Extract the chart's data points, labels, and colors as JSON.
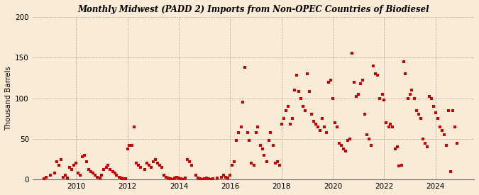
{
  "title": "Monthly Midwest (PADD 2) Imports from Non-OPEC Countries of Biodiesel",
  "ylabel": "Thousand Barrels",
  "background_color": "#faebd7",
  "plot_bg_color": "#faebd7",
  "marker_color": "#cc0000",
  "marker": "s",
  "marker_size": 9,
  "ylim": [
    0,
    200
  ],
  "yticks": [
    0,
    50,
    100,
    150,
    200
  ],
  "xlim_start": 2008.3,
  "xlim_end": 2025.5,
  "xticks": [
    2010,
    2012,
    2014,
    2016,
    2018,
    2020,
    2022,
    2024
  ],
  "data": [
    [
      2008.75,
      1
    ],
    [
      2008.83,
      3
    ],
    [
      2009.0,
      5
    ],
    [
      2009.17,
      8
    ],
    [
      2009.25,
      22
    ],
    [
      2009.33,
      18
    ],
    [
      2009.42,
      25
    ],
    [
      2009.5,
      3
    ],
    [
      2009.58,
      5
    ],
    [
      2009.67,
      2
    ],
    [
      2009.75,
      15
    ],
    [
      2009.83,
      12
    ],
    [
      2009.92,
      18
    ],
    [
      2010.0,
      20
    ],
    [
      2010.08,
      8
    ],
    [
      2010.17,
      5
    ],
    [
      2010.25,
      28
    ],
    [
      2010.33,
      30
    ],
    [
      2010.42,
      22
    ],
    [
      2010.5,
      12
    ],
    [
      2010.58,
      10
    ],
    [
      2010.67,
      8
    ],
    [
      2010.75,
      5
    ],
    [
      2010.83,
      3
    ],
    [
      2010.92,
      2
    ],
    [
      2011.0,
      5
    ],
    [
      2011.08,
      12
    ],
    [
      2011.17,
      15
    ],
    [
      2011.25,
      18
    ],
    [
      2011.33,
      12
    ],
    [
      2011.42,
      10
    ],
    [
      2011.5,
      8
    ],
    [
      2011.58,
      5
    ],
    [
      2011.67,
      3
    ],
    [
      2011.75,
      2
    ],
    [
      2011.83,
      1
    ],
    [
      2011.92,
      1
    ],
    [
      2012.0,
      38
    ],
    [
      2012.08,
      42
    ],
    [
      2012.17,
      42
    ],
    [
      2012.25,
      65
    ],
    [
      2012.33,
      20
    ],
    [
      2012.42,
      18
    ],
    [
      2012.5,
      15
    ],
    [
      2012.67,
      12
    ],
    [
      2012.75,
      20
    ],
    [
      2012.83,
      18
    ],
    [
      2012.92,
      15
    ],
    [
      2013.0,
      22
    ],
    [
      2013.08,
      25
    ],
    [
      2013.17,
      20
    ],
    [
      2013.25,
      18
    ],
    [
      2013.33,
      15
    ],
    [
      2013.42,
      5
    ],
    [
      2013.5,
      3
    ],
    [
      2013.58,
      2
    ],
    [
      2013.67,
      1
    ],
    [
      2013.75,
      0
    ],
    [
      2013.83,
      2
    ],
    [
      2013.92,
      3
    ],
    [
      2014.0,
      2
    ],
    [
      2014.08,
      1
    ],
    [
      2014.17,
      0
    ],
    [
      2014.25,
      2
    ],
    [
      2014.33,
      25
    ],
    [
      2014.42,
      22
    ],
    [
      2014.5,
      18
    ],
    [
      2014.67,
      5
    ],
    [
      2014.75,
      2
    ],
    [
      2014.83,
      1
    ],
    [
      2014.92,
      0
    ],
    [
      2015.0,
      1
    ],
    [
      2015.08,
      2
    ],
    [
      2015.17,
      1
    ],
    [
      2015.25,
      0
    ],
    [
      2015.33,
      1
    ],
    [
      2015.5,
      2
    ],
    [
      2015.67,
      3
    ],
    [
      2015.75,
      5
    ],
    [
      2015.83,
      3
    ],
    [
      2015.92,
      2
    ],
    [
      2016.0,
      5
    ],
    [
      2016.08,
      18
    ],
    [
      2016.17,
      22
    ],
    [
      2016.25,
      48
    ],
    [
      2016.33,
      58
    ],
    [
      2016.42,
      65
    ],
    [
      2016.5,
      95
    ],
    [
      2016.58,
      138
    ],
    [
      2016.67,
      58
    ],
    [
      2016.75,
      48
    ],
    [
      2016.83,
      20
    ],
    [
      2016.92,
      18
    ],
    [
      2017.0,
      58
    ],
    [
      2017.08,
      65
    ],
    [
      2017.17,
      42
    ],
    [
      2017.25,
      38
    ],
    [
      2017.33,
      30
    ],
    [
      2017.42,
      22
    ],
    [
      2017.5,
      48
    ],
    [
      2017.58,
      58
    ],
    [
      2017.67,
      42
    ],
    [
      2017.75,
      20
    ],
    [
      2017.83,
      22
    ],
    [
      2017.92,
      18
    ],
    [
      2018.0,
      68
    ],
    [
      2018.08,
      75
    ],
    [
      2018.17,
      85
    ],
    [
      2018.25,
      90
    ],
    [
      2018.33,
      68
    ],
    [
      2018.42,
      75
    ],
    [
      2018.5,
      110
    ],
    [
      2018.58,
      128
    ],
    [
      2018.67,
      108
    ],
    [
      2018.75,
      100
    ],
    [
      2018.83,
      90
    ],
    [
      2018.92,
      85
    ],
    [
      2019.0,
      130
    ],
    [
      2019.08,
      108
    ],
    [
      2019.17,
      80
    ],
    [
      2019.25,
      72
    ],
    [
      2019.33,
      68
    ],
    [
      2019.42,
      65
    ],
    [
      2019.5,
      60
    ],
    [
      2019.58,
      75
    ],
    [
      2019.67,
      65
    ],
    [
      2019.75,
      58
    ],
    [
      2019.83,
      120
    ],
    [
      2019.92,
      122
    ],
    [
      2020.0,
      100
    ],
    [
      2020.08,
      70
    ],
    [
      2020.17,
      65
    ],
    [
      2020.25,
      45
    ],
    [
      2020.33,
      42
    ],
    [
      2020.42,
      38
    ],
    [
      2020.5,
      35
    ],
    [
      2020.58,
      48
    ],
    [
      2020.67,
      50
    ],
    [
      2020.75,
      155
    ],
    [
      2020.83,
      120
    ],
    [
      2020.92,
      102
    ],
    [
      2021.0,
      105
    ],
    [
      2021.08,
      118
    ],
    [
      2021.17,
      122
    ],
    [
      2021.25,
      80
    ],
    [
      2021.33,
      55
    ],
    [
      2021.42,
      50
    ],
    [
      2021.5,
      42
    ],
    [
      2021.58,
      140
    ],
    [
      2021.67,
      130
    ],
    [
      2021.75,
      128
    ],
    [
      2021.83,
      100
    ],
    [
      2021.92,
      105
    ],
    [
      2022.0,
      98
    ],
    [
      2022.08,
      70
    ],
    [
      2022.17,
      65
    ],
    [
      2022.25,
      68
    ],
    [
      2022.33,
      65
    ],
    [
      2022.42,
      38
    ],
    [
      2022.5,
      40
    ],
    [
      2022.58,
      17
    ],
    [
      2022.67,
      18
    ],
    [
      2022.75,
      145
    ],
    [
      2022.83,
      130
    ],
    [
      2022.92,
      100
    ],
    [
      2023.0,
      105
    ],
    [
      2023.08,
      110
    ],
    [
      2023.17,
      100
    ],
    [
      2023.25,
      85
    ],
    [
      2023.33,
      80
    ],
    [
      2023.42,
      75
    ],
    [
      2023.5,
      50
    ],
    [
      2023.58,
      45
    ],
    [
      2023.67,
      40
    ],
    [
      2023.75,
      102
    ],
    [
      2023.83,
      100
    ],
    [
      2023.92,
      90
    ],
    [
      2024.0,
      82
    ],
    [
      2024.08,
      75
    ],
    [
      2024.17,
      65
    ],
    [
      2024.25,
      60
    ],
    [
      2024.33,
      55
    ],
    [
      2024.42,
      42
    ],
    [
      2024.5,
      85
    ],
    [
      2024.58,
      10
    ],
    [
      2024.67,
      85
    ],
    [
      2024.75,
      65
    ],
    [
      2024.83,
      45
    ]
  ]
}
